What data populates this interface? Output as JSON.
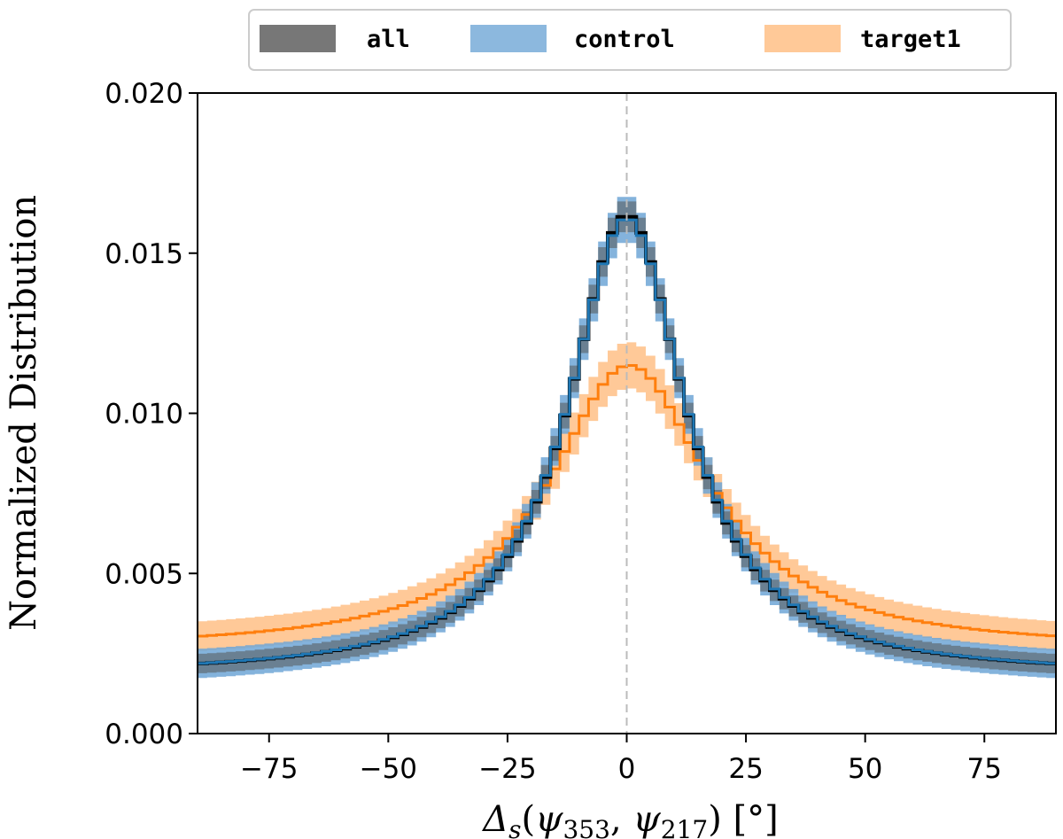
{
  "chart_data": {
    "type": "step",
    "x_range": [
      -90,
      90
    ],
    "bin_width": 2,
    "ylim": [
      0,
      0.02
    ],
    "xticks": [
      -75,
      -50,
      -25,
      0,
      25,
      50,
      75
    ],
    "xtick_labels": [
      "−75",
      "−50",
      "−25",
      "0",
      "25",
      "50",
      "75"
    ],
    "yticks": [
      0.0,
      0.005,
      0.01,
      0.015,
      0.02
    ],
    "ytick_labels": [
      "0.000",
      "0.005",
      "0.010",
      "0.015",
      "0.020"
    ],
    "ylabel": "Normalized Distribution",
    "xlabel": {
      "delta": "Δ",
      "delta_sub": "s",
      "open": "(",
      "psi": "ψ",
      "sub1": "353",
      "comma": ", ",
      "sub2": "217",
      "close": ") [",
      "degree": "°",
      "end": "]"
    },
    "vline_x": 0,
    "legend": {
      "position": "top-center",
      "entries": [
        "all",
        "control",
        "target1"
      ]
    },
    "series": [
      {
        "name": "all",
        "color": "#000000",
        "band_color": "#555555",
        "model": {
          "amplitude": 0.0144,
          "center": 0,
          "width": 14.8,
          "baseline": 0.0018
        },
        "band_halfwidth": 0.0003
      },
      {
        "name": "control",
        "color": "#1f77b4",
        "band_color": "#6fa6d6",
        "model": {
          "amplitude": 0.0143,
          "center": 0,
          "width": 15.0,
          "baseline": 0.0018
        },
        "band_halfwidth": 0.00045
      },
      {
        "name": "target1",
        "color": "#ff7f0e",
        "band_color": "#ffbf86",
        "model": {
          "amplitude": 0.0089,
          "center": 0.5,
          "width": 20.5,
          "baseline": 0.0026
        },
        "band_halfwidth": 0.00045
      }
    ]
  }
}
